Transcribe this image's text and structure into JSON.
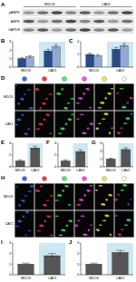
{
  "blot": {
    "label": "A",
    "groups": [
      "MDCK",
      "CAV1"
    ],
    "rows": [
      "pAMPK",
      "AMPK",
      "GAPDH"
    ]
  },
  "chart_data": [
    {
      "type": "bar",
      "title": "B",
      "categories": [
        "MDCK",
        "CAV1"
      ],
      "ylim": [
        0,
        3
      ],
      "yticks": [
        0,
        1,
        2,
        3
      ],
      "series": [
        {
          "color": "#2b4a8c",
          "values": [
            1,
            1.9
          ],
          "errors": [
            0.1,
            0.2
          ]
        },
        {
          "color": "#8faad6",
          "values": [
            1.2,
            2.4
          ],
          "errors": [
            0.15,
            0.25
          ]
        }
      ]
    },
    {
      "type": "bar",
      "title": "C",
      "categories": [
        "MDCK",
        "CAV1"
      ],
      "ylim": [
        0,
        2
      ],
      "yticks": [
        0,
        1,
        2
      ],
      "series": [
        {
          "color": "#2b4a8c",
          "values": [
            1,
            1.4
          ],
          "errors": [
            0.1,
            0.15
          ]
        },
        {
          "color": "#8faad6",
          "values": [
            0.9,
            1.7
          ],
          "errors": [
            0.1,
            0.15
          ]
        }
      ]
    },
    {
      "type": "bar",
      "title": "E",
      "categories": [
        "MDCK",
        "CAV1"
      ],
      "ylim": [
        0,
        4
      ],
      "yticks": [
        0,
        2,
        4
      ],
      "series": [
        {
          "color": "#555555",
          "values": [
            1,
            3.2
          ],
          "errors": [
            0.2,
            0.3
          ]
        }
      ]
    },
    {
      "type": "bar",
      "title": "F",
      "categories": [
        "MDCK",
        "CAV1"
      ],
      "ylim": [
        0,
        4
      ],
      "yticks": [
        0,
        2,
        4
      ],
      "series": [
        {
          "color": "#555555",
          "values": [
            1,
            2.6
          ],
          "errors": [
            0.2,
            0.3
          ]
        }
      ]
    },
    {
      "type": "bar",
      "title": "G",
      "categories": [
        "MDCK",
        "CAV1"
      ],
      "ylim": [
        0,
        3
      ],
      "yticks": [
        0,
        1,
        2,
        3
      ],
      "series": [
        {
          "color": "#555555",
          "values": [
            1,
            2.2
          ],
          "errors": [
            0.1,
            0.2
          ]
        }
      ]
    },
    {
      "type": "bar",
      "title": "I",
      "categories": [
        "MDCK",
        "CAV1"
      ],
      "ylim": [
        0,
        3
      ],
      "yticks": [
        0,
        1,
        2,
        3
      ],
      "series": [
        {
          "color": "#555555",
          "values": [
            1,
            1.8
          ],
          "errors": [
            0.1,
            0.2
          ]
        }
      ]
    },
    {
      "type": "bar",
      "title": "J",
      "categories": [
        "MDCK",
        "CAV1"
      ],
      "ylim": [
        0,
        3
      ],
      "yticks": [
        0,
        1,
        2,
        3
      ],
      "series": [
        {
          "color": "#555555",
          "values": [
            1,
            2.1
          ],
          "errors": [
            0.1,
            0.2
          ]
        }
      ]
    }
  ],
  "images": [
    {
      "label": "D",
      "rows": [
        "MDCK",
        "CAV1"
      ],
      "columns": 6
    },
    {
      "label": "H",
      "rows": [
        "MDCK",
        "CAV1"
      ],
      "columns": 6
    }
  ]
}
